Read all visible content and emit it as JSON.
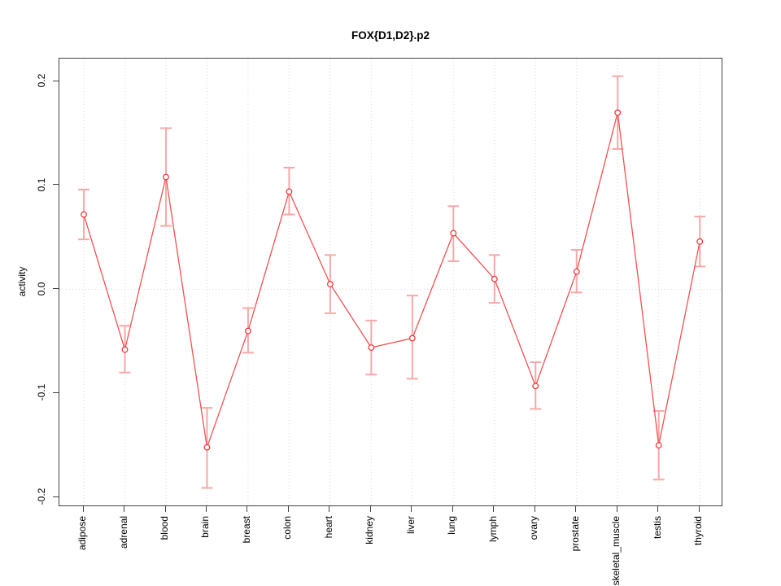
{
  "title": "FOX{D1,D2}.p2",
  "chart_data": {
    "type": "line",
    "title": "FOX{D1,D2}.p2",
    "xlabel": "",
    "ylabel": "activity",
    "categories": [
      "adipose",
      "adrenal",
      "blood",
      "brain",
      "breast",
      "colon",
      "heart",
      "kidney",
      "liver",
      "lung",
      "lymph",
      "ovary",
      "prostate",
      "skeletal_muscle",
      "testis",
      "thyroid"
    ],
    "series": [
      {
        "name": "activity",
        "values": [
          0.072,
          -0.058,
          0.108,
          -0.152,
          -0.04,
          0.094,
          0.005,
          -0.056,
          -0.047,
          0.054,
          0.01,
          -0.093,
          0.017,
          0.17,
          -0.15,
          0.046
        ],
        "err_low": [
          0.048,
          -0.08,
          0.061,
          -0.191,
          -0.061,
          0.072,
          -0.023,
          -0.082,
          -0.086,
          0.027,
          -0.013,
          -0.115,
          -0.003,
          0.135,
          -0.183,
          0.022
        ],
        "err_high": [
          0.096,
          -0.035,
          0.155,
          -0.114,
          -0.018,
          0.117,
          0.033,
          -0.03,
          -0.006,
          0.08,
          0.033,
          -0.07,
          0.038,
          0.205,
          -0.117,
          0.07
        ]
      }
    ],
    "yticks": [
      0.2,
      0.1,
      0.0,
      -0.1,
      -0.2
    ],
    "ytick_labels": [
      "0.2",
      "0.1",
      "0.0",
      "-0.1",
      "-0.2"
    ],
    "ylim": [
      -0.209,
      0.222
    ],
    "grid": "vertical dotted line per category; horizontal dotted line at 0 only",
    "legend": "none",
    "marker": "open-circle",
    "colors": {
      "line": "#f25151",
      "point_stroke": "#ef3b3b",
      "point_fill": "#ffffff",
      "error_bar": "#f7a8a8",
      "grid": "#d8d8d8",
      "box": "#444444",
      "text": "#000000"
    }
  }
}
